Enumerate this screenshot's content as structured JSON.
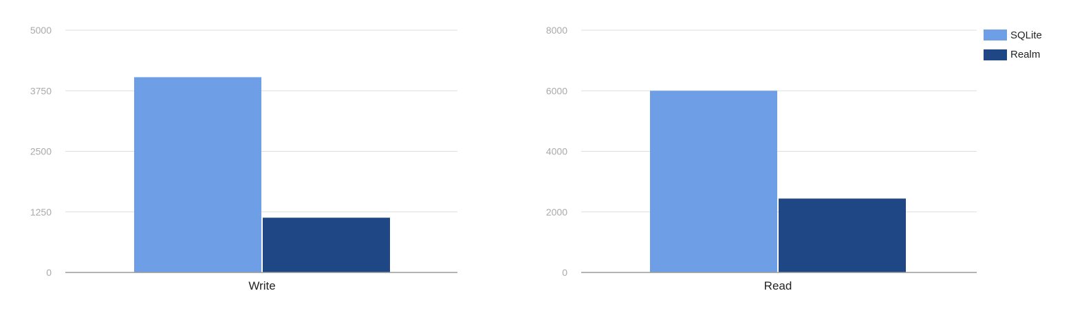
{
  "chart_data": [
    {
      "type": "bar",
      "categories": [
        "Write"
      ],
      "series": [
        {
          "name": "SQLite",
          "values": [
            4030
          ]
        },
        {
          "name": "Realm",
          "values": [
            1130
          ]
        }
      ],
      "yticks": [
        0,
        1250,
        2500,
        3750,
        5000
      ],
      "ylim": [
        0,
        5000
      ],
      "grid": true,
      "legend": "none"
    },
    {
      "type": "bar",
      "categories": [
        "Read"
      ],
      "series": [
        {
          "name": "SQLite",
          "values": [
            6000
          ]
        },
        {
          "name": "Realm",
          "values": [
            2440
          ]
        }
      ],
      "yticks": [
        0,
        2000,
        4000,
        6000,
        8000
      ],
      "ylim": [
        0,
        8000
      ],
      "grid": true,
      "legend": "right"
    }
  ],
  "legend": {
    "placement": "top-right",
    "items": [
      {
        "name": "SQLite",
        "color": "#6d9ee6"
      },
      {
        "name": "Realm",
        "color": "#1f4785"
      }
    ]
  },
  "colors": {
    "sqlite": "#6d9ee6",
    "realm": "#1f4785",
    "grid": "#dddddd",
    "baseline": "#999999",
    "tick_text": "#aaaaaa",
    "label_text": "#222222"
  }
}
